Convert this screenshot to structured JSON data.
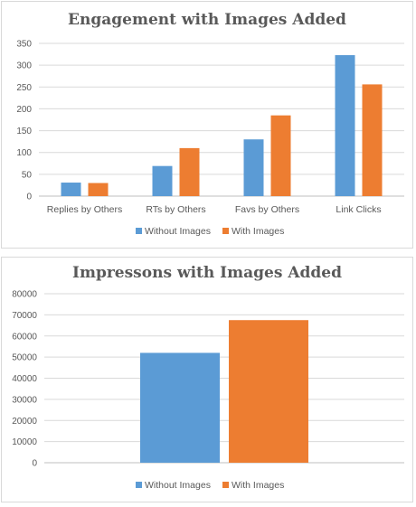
{
  "colors": {
    "without": "#5b9bd5",
    "with": "#ed7d31"
  },
  "chart_data": [
    {
      "type": "bar",
      "title": "Engagement with Images Added",
      "categories": [
        "Replies by Others",
        "RTs by Others",
        "Favs by Others",
        "Link Clicks"
      ],
      "series": [
        {
          "name": "Without Images",
          "values": [
            31,
            69,
            130,
            323
          ]
        },
        {
          "name": "With Images",
          "values": [
            30,
            110,
            185,
            256
          ]
        }
      ],
      "ylim": [
        0,
        350
      ],
      "yticks": [
        "0",
        "50",
        "100",
        "150",
        "200",
        "250",
        "300",
        "350"
      ],
      "grid": true,
      "legend": "bottom"
    },
    {
      "type": "bar",
      "title": "Impressons with Images Added",
      "categories": [
        ""
      ],
      "series": [
        {
          "name": "Without Images",
          "values": [
            52000
          ]
        },
        {
          "name": "With Images",
          "values": [
            67500
          ]
        }
      ],
      "ylim": [
        0,
        80000
      ],
      "yticks": [
        "0",
        "10000",
        "20000",
        "30000",
        "40000",
        "50000",
        "60000",
        "70000",
        "80000"
      ],
      "grid": true,
      "legend": "bottom"
    }
  ]
}
